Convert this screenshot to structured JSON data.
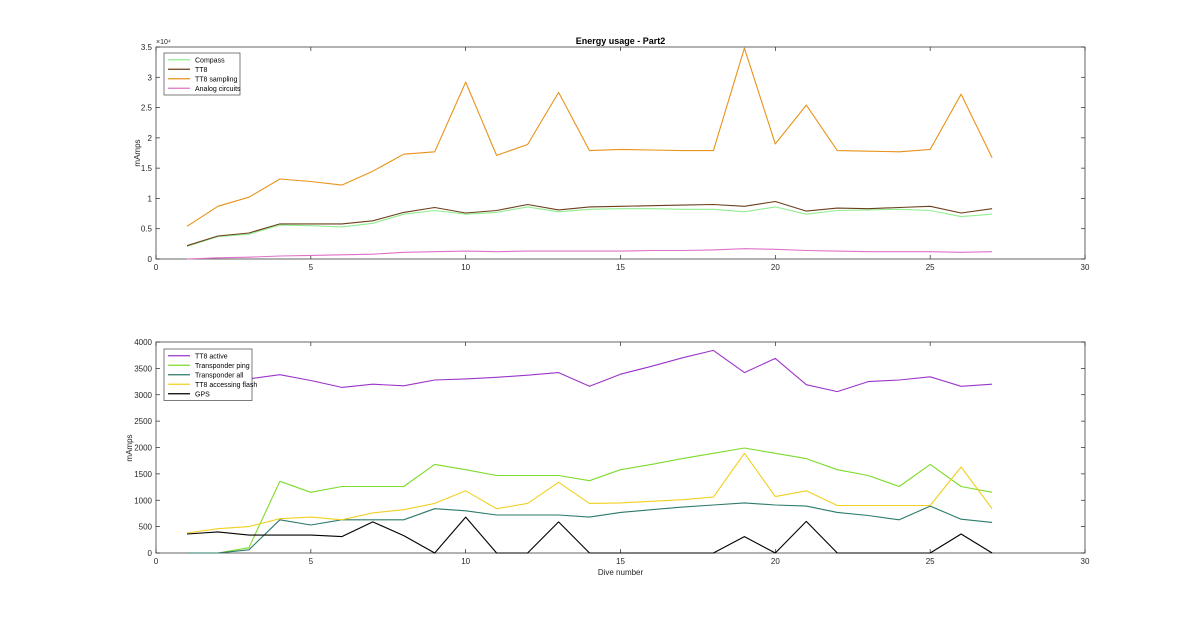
{
  "chart_data": [
    {
      "type": "line",
      "title": "Energy usage - Part2",
      "xlabel": "",
      "ylabel": "mAmps",
      "xlim": [
        0,
        30
      ],
      "ylim": [
        0,
        35000
      ],
      "xticks": [
        "0",
        "5",
        "10",
        "15",
        "20",
        "25",
        "30"
      ],
      "yticks": [
        "0",
        "0.5",
        "1",
        "1.5",
        "2",
        "2.5",
        "3",
        "3.5"
      ],
      "y_exponent": "×10⁴",
      "grid": false,
      "legend_position": "top-left",
      "x": [
        1,
        2,
        3,
        4,
        5,
        6,
        7,
        8,
        9,
        10,
        11,
        12,
        13,
        14,
        15,
        16,
        17,
        18,
        19,
        20,
        21,
        22,
        23,
        24,
        25,
        26,
        27
      ],
      "series": [
        {
          "name": "Compass",
          "color": "#90ee90",
          "values": [
            2100,
            3700,
            4100,
            5600,
            5500,
            5300,
            5900,
            7400,
            8000,
            7400,
            7700,
            8600,
            7800,
            8200,
            8300,
            8300,
            8200,
            8200,
            7800,
            8600,
            7400,
            8000,
            8100,
            8200,
            8000,
            7000,
            7400
          ]
        },
        {
          "name": "TT8",
          "color": "#6b3e1c",
          "values": [
            2200,
            3800,
            4300,
            5800,
            5800,
            5800,
            6300,
            7700,
            8500,
            7600,
            8000,
            9000,
            8100,
            8600,
            8700,
            8800,
            8900,
            9000,
            8700,
            9500,
            7900,
            8400,
            8300,
            8500,
            8700,
            7600,
            8300
          ]
        },
        {
          "name": "TT8 sampling",
          "color": "#e8931a",
          "values": [
            5400,
            8700,
            10200,
            13200,
            12800,
            12200,
            14500,
            17300,
            17700,
            29200,
            17100,
            18900,
            27500,
            17900,
            18100,
            18000,
            17900,
            17900,
            34800,
            19000,
            25400,
            17900,
            17800,
            17700,
            18100,
            27200,
            16700
          ]
        },
        {
          "name": "Analog circuits",
          "color": "#e070c8",
          "values": [
            0,
            200,
            300,
            500,
            600,
            700,
            800,
            1100,
            1200,
            1300,
            1200,
            1300,
            1300,
            1300,
            1300,
            1400,
            1400,
            1500,
            1700,
            1600,
            1400,
            1300,
            1200,
            1200,
            1200,
            1100,
            1200
          ]
        }
      ]
    },
    {
      "type": "line",
      "title": "",
      "xlabel": "Dive number",
      "ylabel": "mAmps",
      "xlim": [
        0,
        30
      ],
      "ylim": [
        0,
        4000
      ],
      "xticks": [
        "0",
        "5",
        "10",
        "15",
        "20",
        "25",
        "30"
      ],
      "yticks": [
        "0",
        "500",
        "1000",
        "1500",
        "2000",
        "2500",
        "3000",
        "3500",
        "4000"
      ],
      "grid": false,
      "legend_position": "top-left",
      "x": [
        1,
        2,
        3,
        4,
        5,
        6,
        7,
        8,
        9,
        10,
        11,
        12,
        13,
        14,
        15,
        16,
        17,
        18,
        19,
        20,
        21,
        22,
        23,
        24,
        25,
        26,
        27
      ],
      "series": [
        {
          "name": "TT8 active",
          "color": "#9b35c9",
          "values": [
            2930,
            3230,
            3300,
            3380,
            3270,
            3140,
            3200,
            3170,
            3280,
            3300,
            3330,
            3370,
            3420,
            3160,
            3390,
            3540,
            3700,
            3840,
            3420,
            3690,
            3190,
            3060,
            3250,
            3280,
            3340,
            3160,
            3200
          ]
        },
        {
          "name": "Transponder ping",
          "color": "#7ddb2a",
          "values": [
            0,
            0,
            100,
            1360,
            1150,
            1260,
            1260,
            1260,
            1680,
            1580,
            1470,
            1470,
            1470,
            1370,
            1580,
            1680,
            1790,
            1890,
            1990,
            1890,
            1790,
            1580,
            1470,
            1260,
            1680,
            1260,
            1150
          ]
        },
        {
          "name": "Transponder all",
          "color": "#2b7a6a",
          "values": [
            0,
            0,
            60,
            630,
            530,
            630,
            630,
            630,
            840,
            800,
            720,
            720,
            720,
            680,
            770,
            820,
            870,
            910,
            950,
            910,
            890,
            770,
            710,
            630,
            890,
            640,
            580
          ]
        },
        {
          "name": "TT8 accessing flash",
          "color": "#f0d020",
          "values": [
            380,
            460,
            500,
            650,
            680,
            630,
            760,
            820,
            940,
            1180,
            840,
            940,
            1340,
            940,
            950,
            980,
            1010,
            1060,
            1890,
            1070,
            1180,
            900,
            900,
            900,
            900,
            1630,
            840
          ]
        },
        {
          "name": "GPS",
          "color": "#000000",
          "values": [
            360,
            400,
            340,
            340,
            340,
            310,
            590,
            330,
            0,
            680,
            0,
            0,
            590,
            0,
            0,
            0,
            0,
            0,
            310,
            0,
            600,
            0,
            0,
            0,
            0,
            360,
            0
          ]
        }
      ]
    }
  ]
}
